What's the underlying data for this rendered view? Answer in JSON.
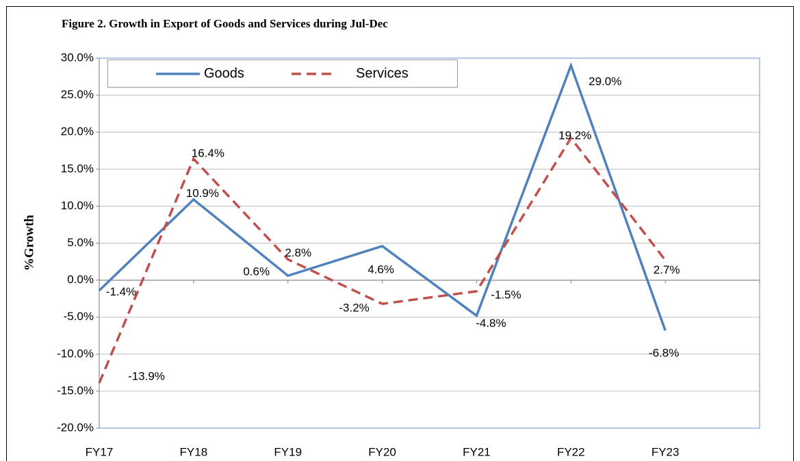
{
  "chart_data": {
    "type": "line",
    "title": "Figure 2. Growth in Export of Goods and Services during Jul-Dec",
    "y_label": "%Growth",
    "categories": [
      "FY17",
      "FY18",
      "FY19",
      "FY20",
      "FY21",
      "FY22",
      "FY23",
      null
    ],
    "series": [
      {
        "name": "Goods",
        "color": "#4f81bd",
        "dashed": false,
        "values": [
          -1.4,
          10.9,
          0.6,
          4.6,
          -4.8,
          29.0,
          -6.8,
          null
        ],
        "value_labels": [
          "-1.4%",
          "10.9%",
          "0.6%",
          "4.6%",
          "-4.8%",
          "29.0%",
          "-6.8%",
          null
        ]
      },
      {
        "name": "Services",
        "color": "#c0504d",
        "dashed": true,
        "values": [
          -13.9,
          16.4,
          2.8,
          -3.2,
          -1.5,
          19.2,
          2.7,
          null
        ],
        "value_labels": [
          "-13.9%",
          "16.4%",
          "2.8%",
          "-3.2%",
          "-1.5%",
          "19.2%",
          "2.7%",
          null
        ]
      }
    ],
    "ylim": [
      -20,
      30
    ],
    "yticks": [
      {
        "value": -20,
        "label": "-20.0%"
      },
      {
        "value": -15,
        "label": "-15.0%"
      },
      {
        "value": -10,
        "label": "-10.0%"
      },
      {
        "value": -5,
        "label": "-5.0%"
      },
      {
        "value": 0,
        "label": "0.0%"
      },
      {
        "value": 5,
        "label": "5.0%"
      },
      {
        "value": 10,
        "label": "10.0%"
      },
      {
        "value": 15,
        "label": "15.0%"
      },
      {
        "value": 20,
        "label": "20.0%"
      },
      {
        "value": 25,
        "label": "25.0%"
      },
      {
        "value": 30,
        "label": "30.0%"
      }
    ],
    "grid": true,
    "legend": "top-left"
  }
}
